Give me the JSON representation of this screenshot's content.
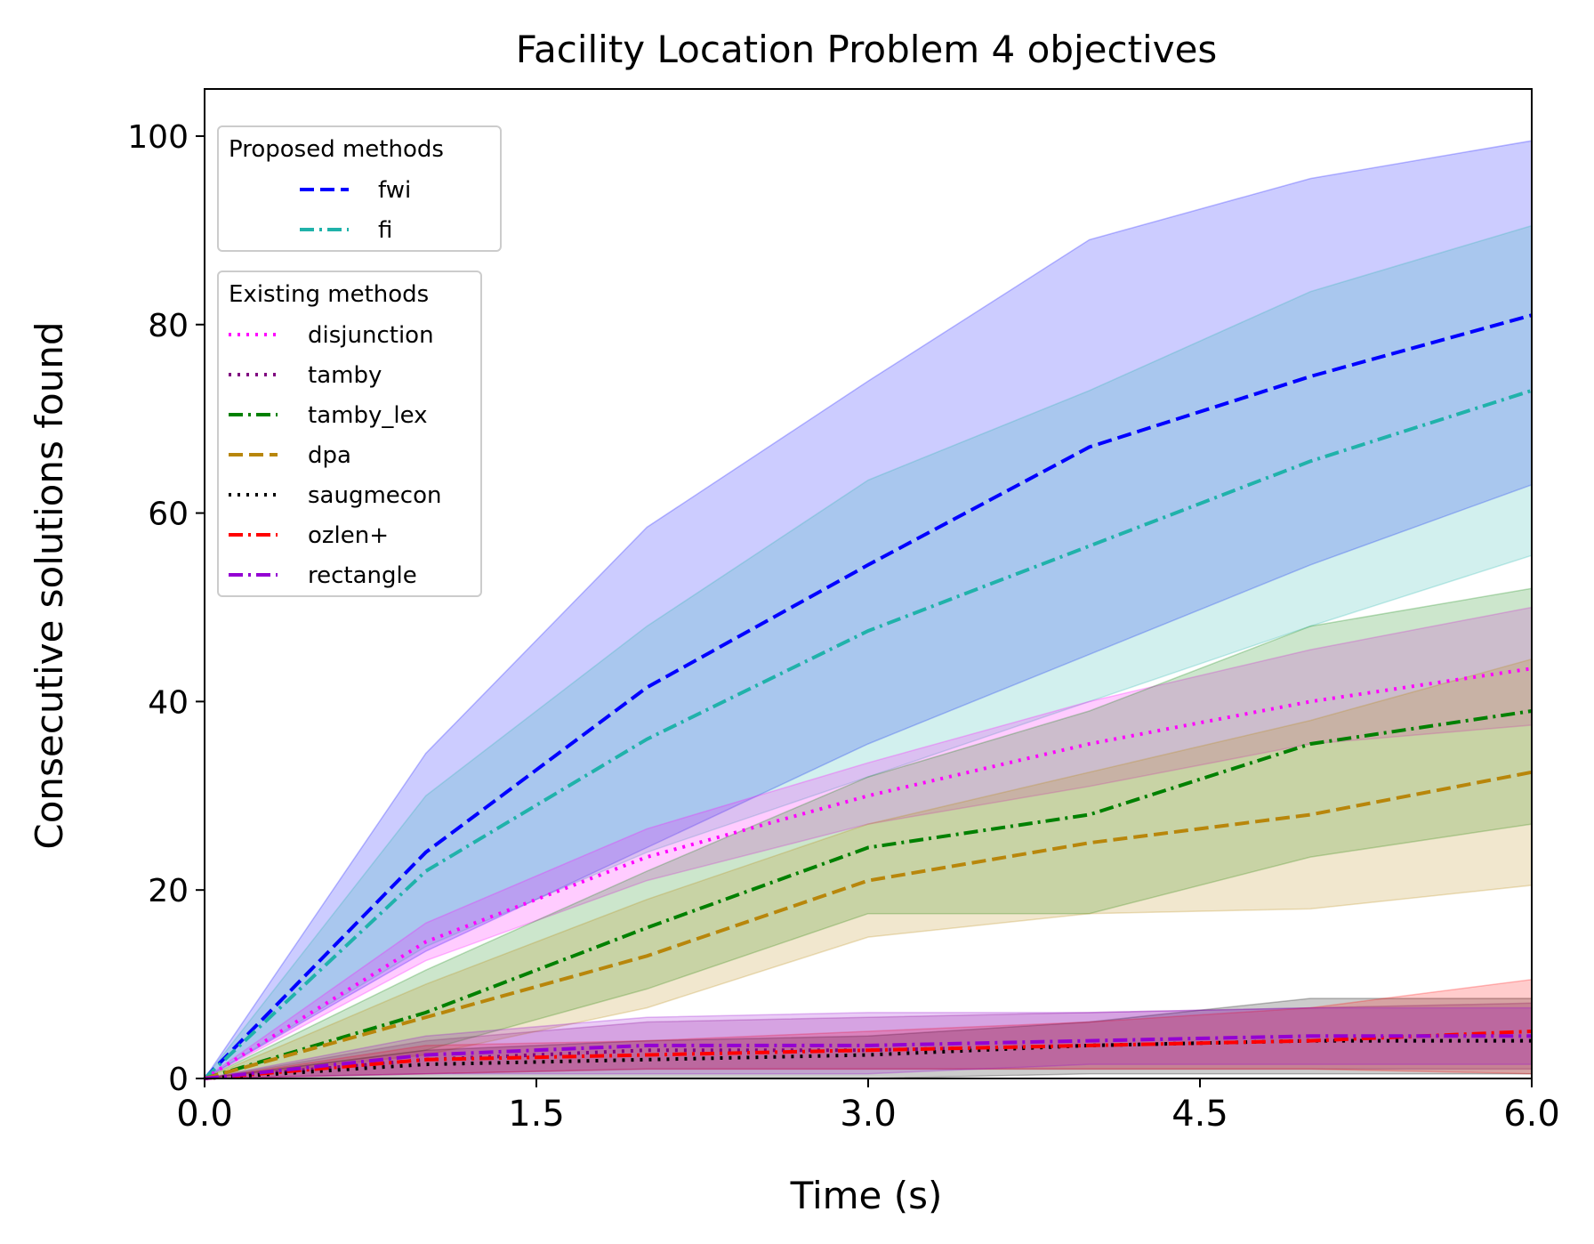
{
  "chart_data": {
    "type": "line",
    "title": "Facility Location Problem 4 objectives",
    "xlabel": "Time (s)",
    "ylabel": "Consecutive solutions found",
    "xlim": [
      0,
      6
    ],
    "ylim": [
      0,
      105
    ],
    "xticks": [
      0,
      1.5,
      3,
      4.5,
      6
    ],
    "xtick_labels": [
      "0.0",
      "1.5",
      "3.0",
      "4.5",
      "6.0"
    ],
    "yticks": [
      0,
      20,
      40,
      60,
      80,
      100
    ],
    "ytick_labels": [
      "0",
      "20",
      "40",
      "60",
      "80",
      "100"
    ],
    "grid": false,
    "x": [
      0,
      1,
      2,
      3,
      4,
      5,
      6
    ],
    "legends": [
      {
        "title": "Proposed methods",
        "placement": "upper-left",
        "entries": [
          "fwi",
          "fi"
        ]
      },
      {
        "title": "Existing methods",
        "placement": "upper-left (below)",
        "entries": [
          "disjunction",
          "tamby",
          "tamby_lex",
          "dpa",
          "saugmecon",
          "ozlen+",
          "rectangle"
        ]
      }
    ],
    "series": [
      {
        "name": "fwi",
        "color": "#0000ff",
        "dash": "dashed",
        "values": [
          0,
          24,
          41.5,
          54.5,
          67,
          74.5,
          81
        ],
        "lower": [
          0,
          13.5,
          24.5,
          35.5,
          45,
          54.5,
          63
        ],
        "upper": [
          0,
          34.5,
          58.5,
          74,
          89,
          95.5,
          99.5
        ]
      },
      {
        "name": "fi",
        "color": "#20b2aa",
        "dash": "dashdot",
        "values": [
          0,
          22,
          36,
          47.5,
          56.5,
          65.5,
          73
        ],
        "lower": [
          0,
          14,
          24,
          32,
          40,
          48,
          55.5
        ],
        "upper": [
          0,
          30,
          48,
          63.5,
          73,
          83.5,
          90.5
        ]
      },
      {
        "name": "disjunction",
        "color": "#ff00ff",
        "dash": "dotted",
        "values": [
          0,
          14.5,
          23.5,
          30,
          35.5,
          40,
          43.5
        ],
        "lower": [
          0,
          12.5,
          21,
          27,
          31,
          35.5,
          37.5
        ],
        "upper": [
          0,
          16.5,
          26.5,
          33.5,
          40,
          45.5,
          50
        ]
      },
      {
        "name": "tamby",
        "color": "#800080",
        "dash": "dotted",
        "values": [
          0,
          2,
          3,
          3,
          3.5,
          4,
          4
        ],
        "lower": [
          0,
          0.5,
          1,
          1,
          1,
          1,
          1
        ],
        "upper": [
          0,
          4,
          6,
          6.5,
          7,
          7.5,
          8
        ]
      },
      {
        "name": "tamby_lex",
        "color": "#008000",
        "dash": "dashdot",
        "values": [
          0,
          7,
          16,
          24.5,
          28,
          35.5,
          39
        ],
        "lower": [
          0,
          3,
          9.5,
          17.5,
          17.5,
          23.5,
          27
        ],
        "upper": [
          0,
          11.5,
          22,
          32,
          39,
          48,
          52
        ]
      },
      {
        "name": "dpa",
        "color": "#b8860b",
        "dash": "dashed",
        "values": [
          0,
          6.5,
          13,
          21,
          25,
          28,
          32.5
        ],
        "lower": [
          0,
          2.5,
          7.5,
          15,
          17.5,
          18,
          20.5
        ],
        "upper": [
          0,
          10,
          19,
          27,
          32.5,
          38,
          44.5
        ]
      },
      {
        "name": "saugmecon",
        "color": "#000000",
        "dash": "dotted",
        "values": [
          0,
          1.5,
          2,
          2.5,
          3.5,
          4,
          4
        ],
        "lower": [
          0,
          0,
          0,
          0,
          0.5,
          0.5,
          0.5
        ],
        "upper": [
          0,
          3,
          4,
          4.5,
          6,
          8.5,
          8.5
        ]
      },
      {
        "name": "ozlen+",
        "color": "#ff0000",
        "dash": "dashdot",
        "values": [
          0,
          2,
          2.5,
          3,
          3.5,
          4,
          5
        ],
        "lower": [
          0,
          0.5,
          1,
          1,
          1,
          1,
          0.5
        ],
        "upper": [
          0,
          3.5,
          4,
          5,
          6,
          7.5,
          10.5
        ]
      },
      {
        "name": "rectangle",
        "color": "#9400d3",
        "dash": "dashdot",
        "values": [
          0,
          2.5,
          3.5,
          3.5,
          4,
          4.5,
          4.5
        ],
        "lower": [
          0,
          0.5,
          0.5,
          0.5,
          1.5,
          1.5,
          1.5
        ],
        "upper": [
          0,
          4.5,
          6.5,
          7,
          7,
          7.5,
          7.5
        ]
      }
    ]
  }
}
